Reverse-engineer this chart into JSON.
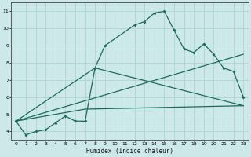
{
  "xlabel": "Humidex (Indice chaleur)",
  "ylabel": "",
  "background_color": "#cce8e8",
  "grid_color": "#aed4d4",
  "line_color": "#1a6b5a",
  "xlim": [
    -0.5,
    23.5
  ],
  "ylim": [
    3.5,
    11.5
  ],
  "xticks": [
    0,
    1,
    2,
    3,
    4,
    5,
    6,
    7,
    8,
    9,
    10,
    11,
    12,
    13,
    14,
    15,
    16,
    17,
    18,
    19,
    20,
    21,
    22,
    23
  ],
  "yticks": [
    4,
    5,
    6,
    7,
    8,
    9,
    10,
    11
  ],
  "series": [
    [
      0,
      4.6
    ],
    [
      1,
      3.8
    ],
    [
      2,
      4.0
    ],
    [
      3,
      4.1
    ],
    [
      4,
      4.5
    ],
    [
      5,
      4.9
    ],
    [
      6,
      4.6
    ],
    [
      7,
      4.6
    ],
    [
      8,
      7.7
    ],
    [
      9,
      9.0
    ],
    [
      12,
      10.2
    ],
    [
      13,
      10.4
    ],
    [
      14,
      10.9
    ],
    [
      15,
      11.0
    ],
    [
      16,
      9.9
    ],
    [
      17,
      8.8
    ],
    [
      18,
      8.6
    ],
    [
      19,
      9.1
    ],
    [
      20,
      8.5
    ],
    [
      21,
      7.7
    ],
    [
      22,
      7.5
    ],
    [
      23,
      6.0
    ]
  ],
  "line2": [
    [
      0,
      4.6
    ],
    [
      8,
      7.7
    ],
    [
      23,
      5.5
    ]
  ],
  "line3": [
    [
      0,
      4.6
    ],
    [
      23,
      8.5
    ]
  ],
  "line4": [
    [
      0,
      4.6
    ],
    [
      7,
      5.3
    ],
    [
      23,
      5.5
    ]
  ]
}
